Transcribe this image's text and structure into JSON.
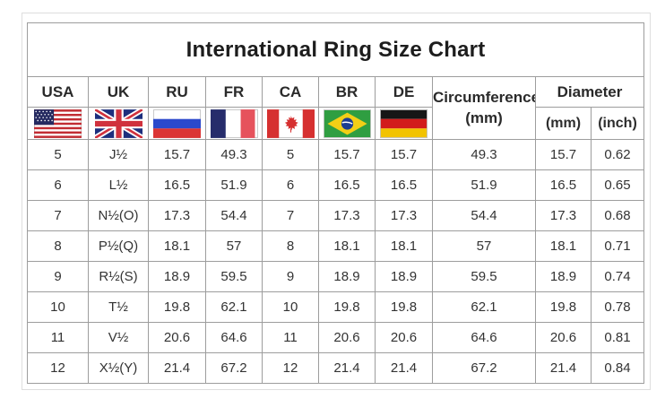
{
  "chart_data": {
    "type": "table",
    "title": "International Ring Size Chart",
    "columns": [
      "USA",
      "UK",
      "RU",
      "FR",
      "CA",
      "BR",
      "DE",
      "Circumference (mm)",
      "Diameter (mm)",
      "Diameter (inch)"
    ],
    "rows": [
      [
        "5",
        "J½",
        "15.7",
        "49.3",
        "5",
        "15.7",
        "15.7",
        "49.3",
        "15.7",
        "0.62"
      ],
      [
        "6",
        "L½",
        "16.5",
        "51.9",
        "6",
        "16.5",
        "16.5",
        "51.9",
        "16.5",
        "0.65"
      ],
      [
        "7",
        "N½(O)",
        "17.3",
        "54.4",
        "7",
        "17.3",
        "17.3",
        "54.4",
        "17.3",
        "0.68"
      ],
      [
        "8",
        "P½(Q)",
        "18.1",
        "57",
        "8",
        "18.1",
        "18.1",
        "57",
        "18.1",
        "0.71"
      ],
      [
        "9",
        "R½(S)",
        "18.9",
        "59.5",
        "9",
        "18.9",
        "18.9",
        "59.5",
        "18.9",
        "0.74"
      ],
      [
        "10",
        "T½",
        "19.8",
        "62.1",
        "10",
        "19.8",
        "19.8",
        "62.1",
        "19.8",
        "0.78"
      ],
      [
        "11",
        "V½",
        "20.6",
        "64.6",
        "11",
        "20.6",
        "20.6",
        "64.6",
        "20.6",
        "0.81"
      ],
      [
        "12",
        "X½(Y)",
        "21.4",
        "67.2",
        "12",
        "21.4",
        "21.4",
        "67.2",
        "21.4",
        "0.84"
      ]
    ]
  },
  "header": {
    "country_labels": [
      "USA",
      "UK",
      "RU",
      "FR",
      "CA",
      "BR",
      "DE"
    ],
    "circumference": {
      "line1": "Circumference",
      "line2": "(mm)"
    },
    "diameter": {
      "label": "Diameter",
      "units": [
        "(mm)",
        "(inch)"
      ]
    }
  },
  "colors": {
    "text": "#2d2d2d",
    "grid_line": "#9d9d9d",
    "outer_frame": "#dedede",
    "flags": {
      "usa_red": "#c22d33",
      "usa_blue": "#252a60",
      "uk_blue": "#1d2f7d",
      "uk_red": "#d0313d",
      "ru_blue": "#2b49cc",
      "ru_red": "#db3535",
      "fr_blue": "#262c6b",
      "fr_red": "#e6525c",
      "ca_red": "#d63030",
      "br_green": "#2f9e41",
      "br_yellow": "#f3cf16",
      "br_blue": "#1c3e92",
      "de_black": "#161616",
      "de_red": "#d21c1c",
      "de_gold": "#f2c300"
    }
  }
}
